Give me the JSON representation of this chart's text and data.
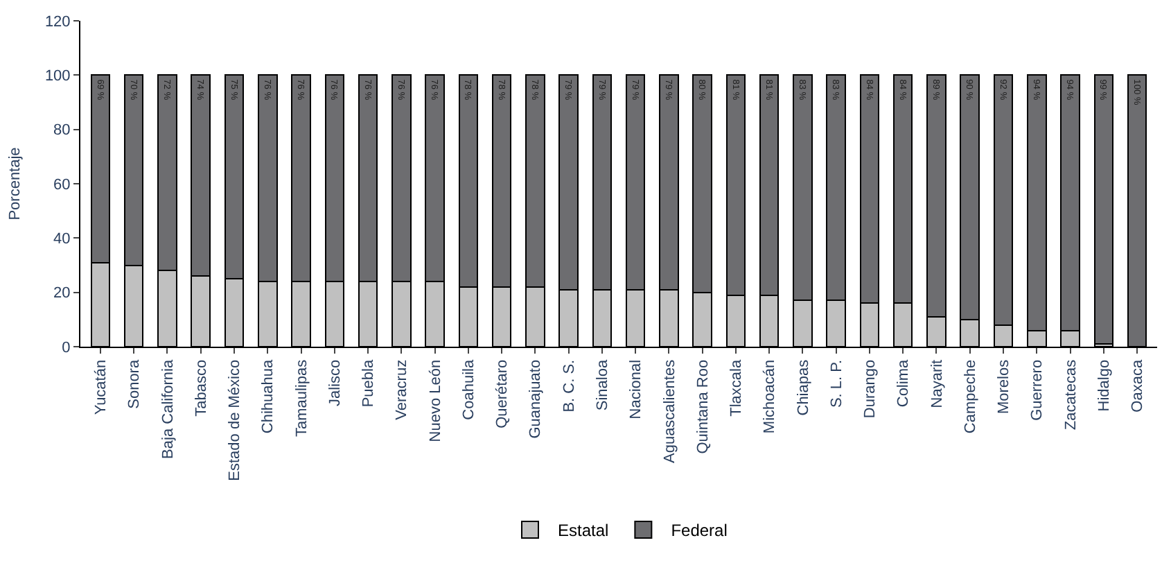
{
  "chart_data": {
    "type": "bar",
    "stacked": true,
    "ylabel": "Porcentaje",
    "categories": [
      "Yucatán",
      "Sonora",
      "Baja California",
      "Tabasco",
      "Estado de México",
      "Chihuahua",
      "Tamaulipas",
      "Jalisco",
      "Puebla",
      "Veracruz",
      "Nuevo León",
      "Coahuila",
      "Querétaro",
      "Guanajuato",
      "B. C. S.",
      "Sinaloa",
      "Nacional",
      "Aguascalientes",
      "Quintana Roo",
      "Tlaxcala",
      "Michoacán",
      "Chiapas",
      "S. L. P.",
      "Durango",
      "Colima",
      "Nayarit",
      "Campeche",
      "Morelos",
      "Guerrero",
      "Zacatecas",
      "Hidalgo",
      "Oaxaca"
    ],
    "series": [
      {
        "name": "Estatal",
        "color": "#c0c0c0",
        "values": [
          31,
          30,
          28,
          26,
          25,
          24,
          24,
          24,
          24,
          24,
          24,
          22,
          22,
          22,
          21,
          21,
          21,
          21,
          20,
          19,
          19,
          17,
          17,
          16,
          16,
          11,
          10,
          8,
          6,
          6,
          1,
          0
        ]
      },
      {
        "name": "Federal",
        "color": "#6d6d70",
        "values": [
          69,
          70,
          72,
          74,
          75,
          76,
          76,
          76,
          76,
          76,
          76,
          78,
          78,
          78,
          79,
          79,
          79,
          79,
          80,
          81,
          81,
          83,
          83,
          84,
          84,
          89,
          90,
          92,
          94,
          94,
          99,
          100
        ],
        "value_labels": [
          "69 %",
          "70 %",
          "72 %",
          "74 %",
          "75 %",
          "76 %",
          "76 %",
          "76 %",
          "76 %",
          "76 %",
          "76 %",
          "78 %",
          "78 %",
          "78 %",
          "79 %",
          "79 %",
          "79 %",
          "79 %",
          "80 %",
          "81 %",
          "81 %",
          "83 %",
          "83 %",
          "84 %",
          "84 %",
          "89 %",
          "90 %",
          "92 %",
          "94 %",
          "94 %",
          "99 %",
          "100 %"
        ]
      }
    ],
    "ylim": [
      0,
      120
    ],
    "yticks": [
      0,
      20,
      40,
      60,
      80,
      100,
      120
    ],
    "legend": "bottom"
  }
}
